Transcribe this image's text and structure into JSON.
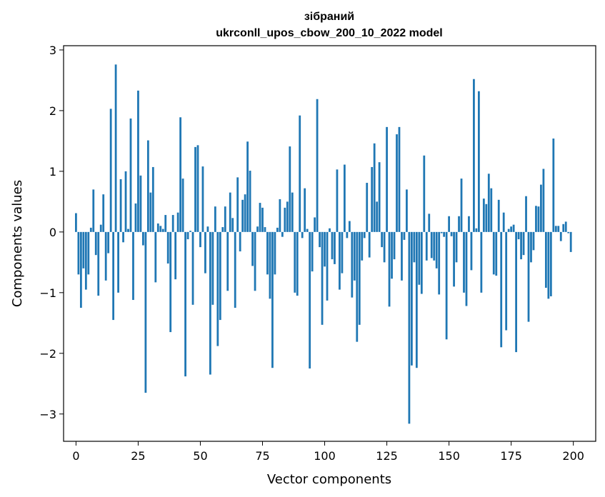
{
  "chart_data": {
    "type": "bar",
    "title": "зібраний",
    "subtitle": "ukrconll_upos_cbow_200_10_2022 model",
    "xlabel": "Vector components",
    "ylabel": "Components values",
    "xlim": [
      -5,
      209
    ],
    "ylim": [
      -3.45,
      3.07
    ],
    "xticks": [
      0,
      25,
      50,
      75,
      100,
      125,
      150,
      175,
      200
    ],
    "yticks": [
      -3,
      -2,
      -1,
      0,
      1,
      2,
      3
    ],
    "xtick_labels": [
      "0",
      "25",
      "50",
      "75",
      "100",
      "125",
      "150",
      "175",
      "200"
    ],
    "ytick_labels": [
      "−3",
      "−2",
      "−1",
      "0",
      "1",
      "2",
      "3"
    ],
    "bar_color": "#1f77b4",
    "grid": false,
    "x": [
      0,
      1,
      2,
      3,
      4,
      5,
      6,
      7,
      8,
      9,
      10,
      11,
      12,
      13,
      14,
      15,
      16,
      17,
      18,
      19,
      20,
      21,
      22,
      23,
      24,
      25,
      26,
      27,
      28,
      29,
      30,
      31,
      32,
      33,
      34,
      35,
      36,
      37,
      38,
      39,
      40,
      41,
      42,
      43,
      44,
      45,
      46,
      47,
      48,
      49,
      50,
      51,
      52,
      53,
      54,
      55,
      56,
      57,
      58,
      59,
      60,
      61,
      62,
      63,
      64,
      65,
      66,
      67,
      68,
      69,
      70,
      71,
      72,
      73,
      74,
      75,
      76,
      77,
      78,
      79,
      80,
      81,
      82,
      83,
      84,
      85,
      86,
      87,
      88,
      89,
      90,
      91,
      92,
      93,
      94,
      95,
      96,
      97,
      98,
      99,
      100,
      101,
      102,
      103,
      104,
      105,
      106,
      107,
      108,
      109,
      110,
      111,
      112,
      113,
      114,
      115,
      116,
      117,
      118,
      119,
      120,
      121,
      122,
      123,
      124,
      125,
      126,
      127,
      128,
      129,
      130,
      131,
      132,
      133,
      134,
      135,
      136,
      137,
      138,
      139,
      140,
      141,
      142,
      143,
      144,
      145,
      146,
      147,
      148,
      149,
      150,
      151,
      152,
      153,
      154,
      155,
      156,
      157,
      158,
      159,
      160,
      161,
      162,
      163,
      164,
      165,
      166,
      167,
      168,
      169,
      170,
      171,
      172,
      173,
      174,
      175,
      176,
      177,
      178,
      179,
      180,
      181,
      182,
      183,
      184,
      185,
      186,
      187,
      188,
      189,
      190,
      191,
      192,
      193,
      194,
      195,
      196,
      197,
      198,
      199
    ],
    "values": [
      0.31,
      -0.7,
      -1.25,
      -0.6,
      -0.95,
      -0.7,
      0.07,
      0.7,
      -0.38,
      -1.05,
      0.12,
      0.62,
      -0.8,
      -0.35,
      2.03,
      -1.45,
      2.76,
      -1.0,
      0.87,
      -0.17,
      1.0,
      0.05,
      1.87,
      -1.12,
      0.47,
      2.33,
      0.93,
      -0.22,
      -2.65,
      1.51,
      0.65,
      1.07,
      -0.83,
      0.14,
      0.1,
      0.05,
      0.28,
      -0.52,
      -1.65,
      0.28,
      -0.78,
      0.32,
      1.89,
      0.88,
      -2.38,
      -0.12,
      0.02,
      -1.2,
      1.4,
      1.43,
      -0.25,
      1.08,
      -0.68,
      0.09,
      -2.35,
      -1.2,
      0.42,
      -1.88,
      -1.45,
      0.08,
      0.42,
      -0.97,
      0.65,
      0.23,
      -1.25,
      0.9,
      -0.32,
      0.53,
      0.62,
      1.49,
      1.01,
      -0.56,
      -0.97,
      0.09,
      0.48,
      0.4,
      0.08,
      -0.7,
      -1.1,
      -2.24,
      -0.7,
      0.07,
      0.54,
      -0.08,
      0.4,
      0.5,
      1.41,
      0.65,
      -1.0,
      -1.05,
      1.92,
      -0.1,
      0.72,
      0.05,
      -2.25,
      -0.65,
      0.24,
      2.19,
      -0.25,
      -1.53,
      -0.57,
      -1.13,
      0.06,
      -0.45,
      -0.53,
      1.03,
      -0.95,
      -0.68,
      1.11,
      -0.1,
      0.18,
      -1.08,
      -0.8,
      -1.81,
      -1.53,
      -0.47,
      -0.1,
      0.81,
      -0.42,
      1.07,
      1.46,
      0.5,
      1.15,
      -0.25,
      -0.5,
      1.73,
      -1.23,
      -0.77,
      -0.45,
      1.61,
      1.73,
      -0.8,
      -0.13,
      0.7,
      -3.16,
      -2.2,
      -0.5,
      -2.24,
      -0.87,
      -1.02,
      1.26,
      -0.47,
      0.3,
      -0.43,
      -0.47,
      -0.6,
      -1.03,
      -0.02,
      -0.08,
      -1.77,
      0.26,
      -0.07,
      -0.9,
      -0.5,
      0.26,
      0.88,
      -1.0,
      -1.22,
      0.26,
      -0.63,
      2.52,
      0.06,
      2.32,
      -1.0,
      0.55,
      0.46,
      0.96,
      0.72,
      -0.7,
      -0.72,
      0.53,
      -1.9,
      0.32,
      -1.62,
      0.05,
      0.09,
      0.12,
      -1.98,
      -0.12,
      -0.45,
      -0.38,
      0.59,
      -1.48,
      -0.5,
      -0.3,
      0.43,
      0.42,
      0.78,
      1.04,
      -0.92,
      -1.1,
      -1.06,
      1.54,
      0.1,
      0.1,
      -0.15,
      0.13,
      0.17,
      -0.02,
      -0.33
    ]
  }
}
